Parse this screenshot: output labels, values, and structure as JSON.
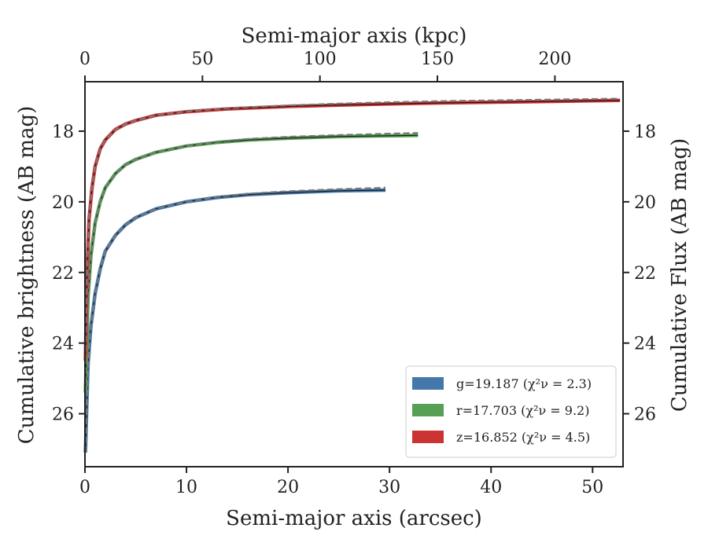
{
  "chart_data": {
    "type": "line",
    "xlabel": "Semi-major axis (arcsec)",
    "x2label": "Semi-major axis (kpc)",
    "ylabel": "Cumulative brightness (AB mag)",
    "y2label": "Cumulative Flux (AB mag)",
    "xlim": [
      0,
      53
    ],
    "x2lim": [
      0,
      229
    ],
    "ylim": [
      27.5,
      16.6
    ],
    "y_inverted": true,
    "xticks": [
      "0",
      "10",
      "20",
      "30",
      "40",
      "50"
    ],
    "x2ticks": [
      "0",
      "50",
      "100",
      "150",
      "200"
    ],
    "yticks": [
      "18",
      "20",
      "22",
      "24",
      "26"
    ],
    "grid": false,
    "legend_position": "lower-right",
    "series": [
      {
        "name": "g",
        "label": "g=19.187 (χ²ν = 2.3)",
        "color": "#4477aa",
        "x": [
          0.05,
          0.3,
          0.6,
          1.0,
          1.5,
          2.0,
          3.0,
          4.0,
          5.0,
          7.0,
          10.0,
          13.0,
          16.0,
          20.0,
          25.0,
          29.6
        ],
        "y": [
          27.1,
          24.6,
          23.5,
          22.6,
          21.9,
          21.4,
          20.95,
          20.65,
          20.45,
          20.2,
          20.0,
          19.88,
          19.8,
          19.74,
          19.69,
          19.67
        ],
        "model_y": [
          27.1,
          24.6,
          23.5,
          22.6,
          21.9,
          21.4,
          20.95,
          20.65,
          20.45,
          20.2,
          20.0,
          19.86,
          19.77,
          19.7,
          19.64,
          19.6
        ]
      },
      {
        "name": "r",
        "label": "r=17.703 (χ²ν = 9.2)",
        "color": "#55a055",
        "x": [
          0.05,
          0.3,
          0.6,
          1.0,
          1.5,
          2.0,
          3.0,
          4.0,
          5.0,
          7.0,
          10.0,
          13.0,
          16.0,
          20.0,
          25.0,
          30.0,
          32.8
        ],
        "y": [
          25.4,
          22.7,
          21.5,
          20.6,
          20.0,
          19.6,
          19.2,
          18.95,
          18.8,
          18.6,
          18.42,
          18.32,
          18.25,
          18.2,
          18.15,
          18.13,
          18.12
        ],
        "model_y": [
          25.4,
          22.7,
          21.5,
          20.6,
          20.0,
          19.6,
          19.2,
          18.95,
          18.8,
          18.6,
          18.42,
          18.3,
          18.22,
          18.16,
          18.11,
          18.07,
          18.05
        ]
      },
      {
        "name": "z",
        "label": "z=16.852 (χ²ν = 4.5)",
        "color": "#cc3333",
        "x": [
          0.05,
          0.2,
          0.4,
          0.7,
          1.0,
          1.5,
          2.0,
          3.0,
          4.0,
          5.0,
          7.0,
          10.0,
          14.0,
          20.0,
          25.0,
          30.0,
          35.0,
          40.0,
          45.0,
          50.0,
          52.7
        ],
        "y": [
          24.5,
          22.0,
          20.5,
          19.6,
          19.0,
          18.5,
          18.25,
          17.95,
          17.8,
          17.7,
          17.55,
          17.45,
          17.37,
          17.3,
          17.26,
          17.23,
          17.2,
          17.18,
          17.16,
          17.14,
          17.13
        ],
        "model_y": [
          24.5,
          22.0,
          20.5,
          19.6,
          19.0,
          18.5,
          18.25,
          17.95,
          17.8,
          17.7,
          17.55,
          17.44,
          17.35,
          17.27,
          17.22,
          17.18,
          17.15,
          17.13,
          17.11,
          17.09,
          17.08
        ]
      }
    ]
  }
}
